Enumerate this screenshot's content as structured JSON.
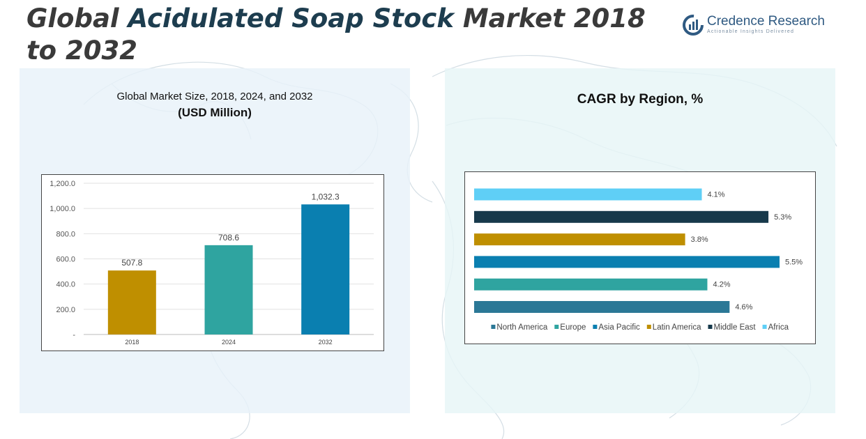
{
  "page": {
    "title_part1": "Global ",
    "title_accent": "Acidulated Soap Stock",
    "title_part2": " Market 2018 to 2032",
    "logo_name": "Credence Research",
    "logo_tagline": "Actionable Insights Delivered",
    "colors": {
      "title": "#3a3a3a",
      "title_accent": "#1d3d4f",
      "logo": "#2f5a82"
    }
  },
  "chart_data": [
    {
      "type": "bar",
      "title": "Global Market Size, 2018, 2024, and 2032",
      "subtitle": "(USD Million)",
      "categories": [
        "2018",
        "2024",
        "2032"
      ],
      "values": [
        507.8,
        708.6,
        1032.3
      ],
      "value_labels": [
        "507.8",
        "708.6",
        "1,032.3"
      ],
      "colors": [
        "#bf8f00",
        "#2fa4a0",
        "#0a7fb0"
      ],
      "ylim": [
        0,
        1200
      ],
      "yticks": [
        0,
        200,
        400,
        600,
        800,
        1000,
        1200
      ],
      "ytick_labels": [
        "-",
        "200.0",
        "400.0",
        "600.0",
        "800.0",
        "1,000.0",
        "1,200.0"
      ],
      "grid": true,
      "legend": "none"
    },
    {
      "type": "bar",
      "orientation": "horizontal",
      "title": "CAGR by Region, %",
      "series": [
        {
          "name": "North America",
          "value": 4.6,
          "label": "4.6%",
          "color": "#2b7896"
        },
        {
          "name": "Europe",
          "value": 4.2,
          "label": "4.2%",
          "color": "#2fa4a0"
        },
        {
          "name": "Asia Pacific",
          "value": 5.5,
          "label": "5.5%",
          "color": "#0a7fb0"
        },
        {
          "name": "Latin America",
          "value": 3.8,
          "label": "3.8%",
          "color": "#bf8f00"
        },
        {
          "name": "Middle East",
          "value": 5.3,
          "label": "5.3%",
          "color": "#17394b"
        },
        {
          "name": "Africa",
          "value": 4.1,
          "label": "4.1%",
          "color": "#5fcff6"
        }
      ],
      "xlim": [
        0,
        6.0
      ],
      "grid": false,
      "legend": "bottom"
    }
  ]
}
